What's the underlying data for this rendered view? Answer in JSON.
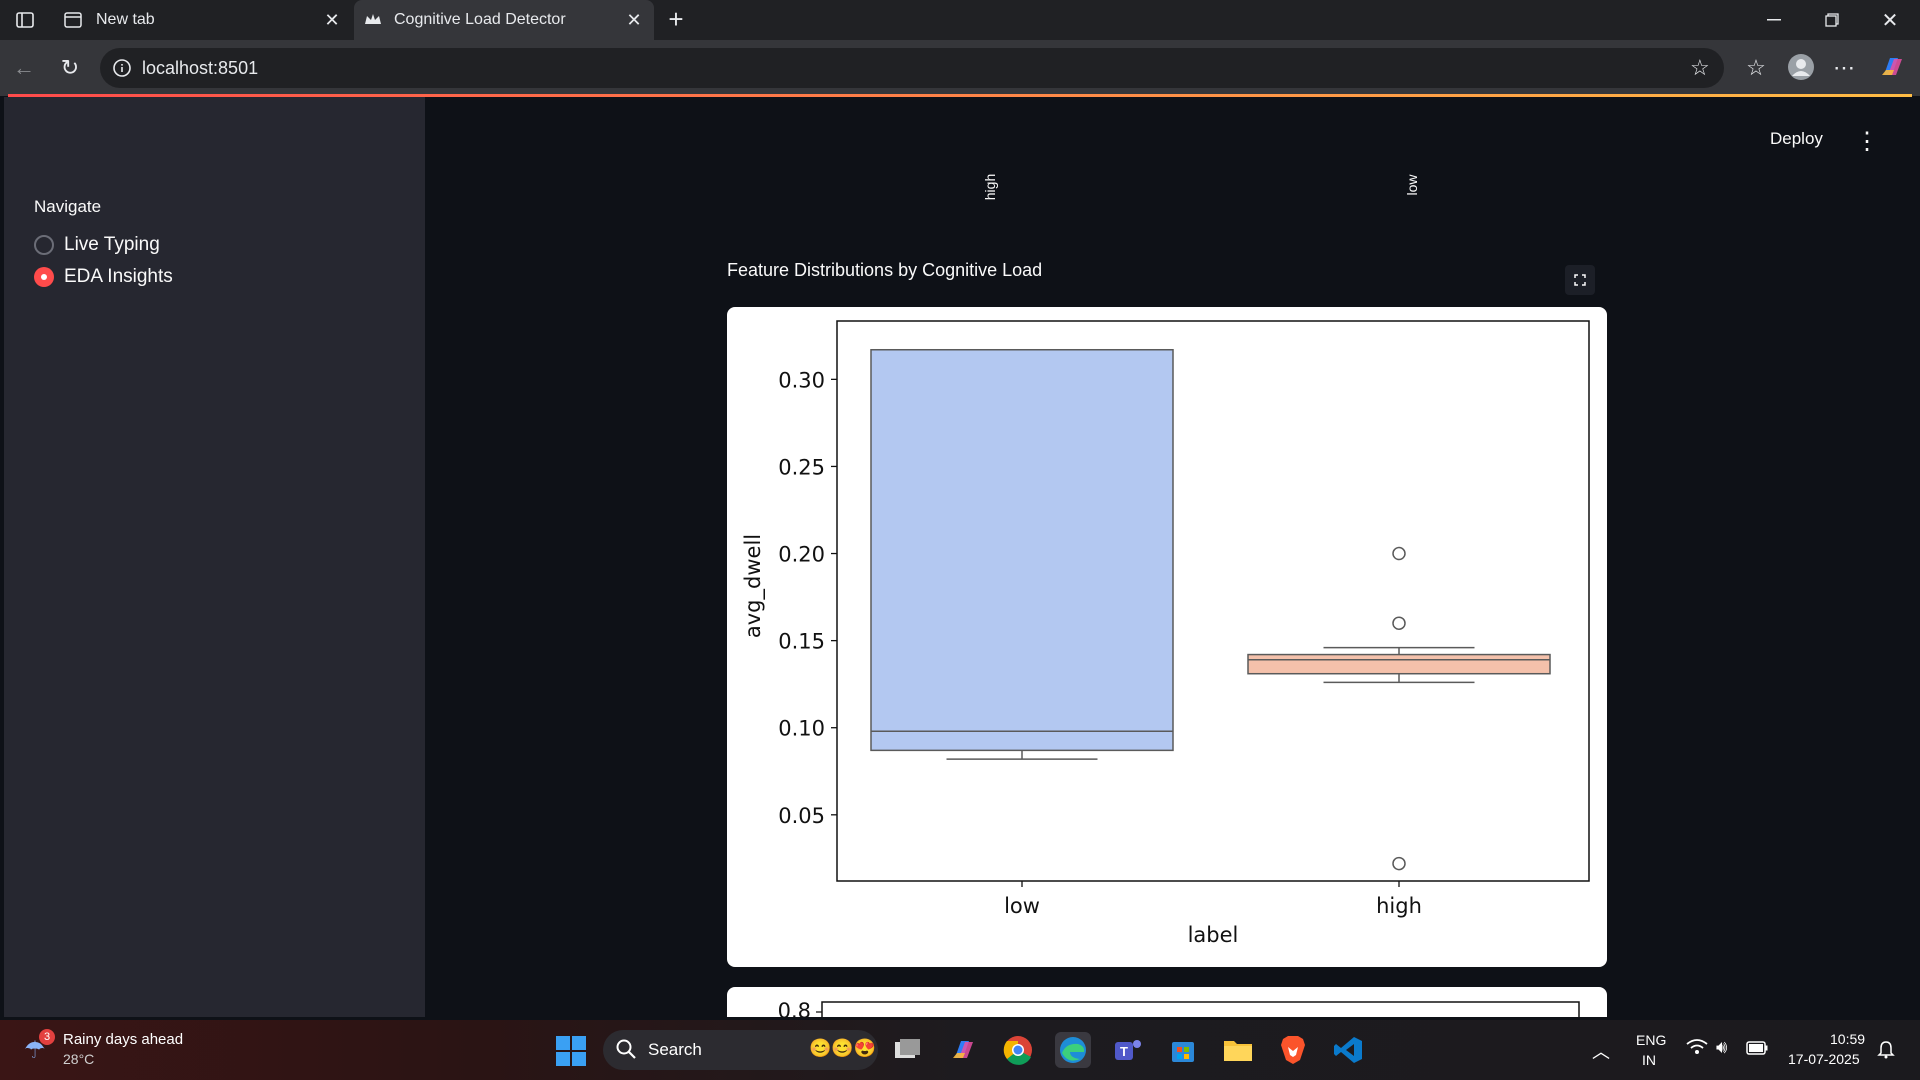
{
  "browser": {
    "tabs": [
      {
        "title": "New tab"
      },
      {
        "title": "Cognitive Load Detector"
      }
    ],
    "url": "localhost:8501"
  },
  "sidebar": {
    "nav_label": "Navigate",
    "options": [
      {
        "label": "Live Typing",
        "selected": false
      },
      {
        "label": "EDA Insights",
        "selected": true
      }
    ]
  },
  "header": {
    "deploy_label": "Deploy",
    "menu_glyph": "⋮"
  },
  "top_rotated_labels": [
    "high",
    "low"
  ],
  "section": {
    "title": "Feature Distributions by Cognitive Load"
  },
  "chart_data": {
    "type": "box",
    "xlabel": "label",
    "ylabel": "avg_dwell",
    "categories": [
      "low",
      "high"
    ],
    "yticks": [
      "0.05",
      "0.10",
      "0.15",
      "0.20",
      "0.25",
      "0.30"
    ],
    "ylim": [
      0.012,
      0.3335
    ],
    "boxes": [
      {
        "category": "low",
        "whisker_low": 0.082,
        "q1": 0.087,
        "median": 0.098,
        "q3": 0.317,
        "whisker_high": 0.317,
        "outliers": [],
        "color": "#b3c8f1"
      },
      {
        "category": "high",
        "whisker_low": 0.126,
        "q1": 0.131,
        "median": 0.139,
        "q3": 0.142,
        "whisker_high": 0.146,
        "outliers": [
          0.2,
          0.16,
          0.022
        ],
        "color": "#f4c1ab"
      }
    ],
    "grid": false
  },
  "chart_data_2_partial": {
    "visible_tick": "0.8"
  },
  "taskbar": {
    "weather_title": "Rainy days ahead",
    "weather_temp": "28°C",
    "weather_badge": "3",
    "search_label": "Search",
    "lang_top": "ENG",
    "lang_bottom": "IN",
    "time": "10:59",
    "date": "17-07-2025"
  }
}
